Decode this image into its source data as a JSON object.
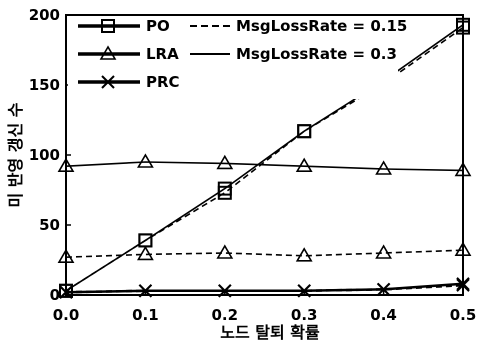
{
  "chart_data": {
    "type": "line",
    "xlabel": "노드 탈퇴 확률",
    "ylabel": "미 반영 갱신 수",
    "xlim": [
      0,
      0.5
    ],
    "ylim": [
      0,
      200
    ],
    "x_ticks": [
      "0.0",
      "0.1",
      "0.2",
      "0.3",
      "0.4",
      "0.5"
    ],
    "y_ticks": [
      "0",
      "50",
      "100",
      "150",
      "200"
    ],
    "grid": false,
    "legend_placement": "top-left",
    "legend": {
      "markers": [
        "PO",
        "LRA",
        "PRC"
      ],
      "line_styles": [
        "MsgLossRate = 0.15",
        "MsgLossRate = 0.3"
      ]
    },
    "x": [
      0.0,
      0.1,
      0.2,
      0.3,
      0.4,
      0.5
    ],
    "series": [
      {
        "marker": "square",
        "style": "dashed",
        "values": [
          3,
          39,
          73,
          117,
          151,
          191
        ]
      },
      {
        "marker": "square",
        "style": "solid",
        "values": [
          3,
          39,
          76,
          117,
          153,
          193
        ]
      },
      {
        "marker": "triangle",
        "style": "dashed",
        "values": [
          27,
          29,
          30,
          28,
          30,
          32
        ]
      },
      {
        "marker": "triangle",
        "style": "solid",
        "values": [
          92,
          95,
          94,
          92,
          90,
          89
        ]
      },
      {
        "marker": "x",
        "style": "dashed",
        "values": [
          2,
          3,
          3,
          3,
          4,
          7
        ]
      },
      {
        "marker": "x",
        "style": "solid",
        "values": [
          2,
          3,
          3,
          3,
          4,
          8
        ]
      }
    ]
  }
}
